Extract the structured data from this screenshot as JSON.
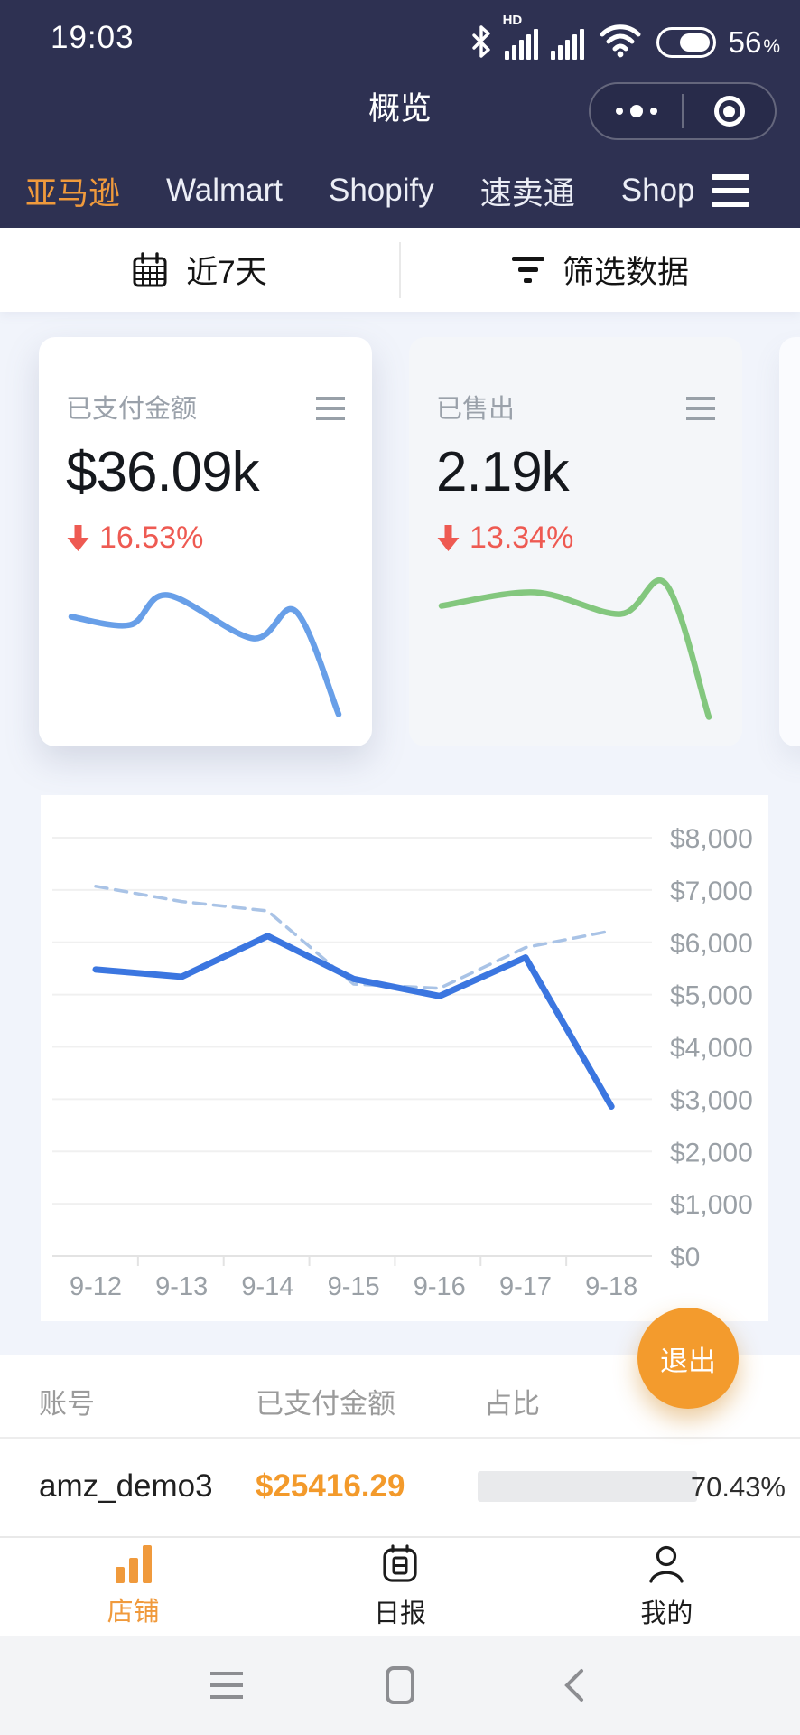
{
  "status_bar": {
    "time": "19:03",
    "hd_label": "HD",
    "battery_percent": "56",
    "percent_sign": "%"
  },
  "nav": {
    "title": "概览"
  },
  "platform_tabs": {
    "items": [
      "亚马逊",
      "Walmart",
      "Shopify",
      "速卖通",
      "Shope"
    ],
    "active_index": 0
  },
  "filter_bar": {
    "date_range": "近7天",
    "filter_label": "筛选数据"
  },
  "summary_cards": [
    {
      "title": "已支付金额",
      "value": "$36.09k",
      "change": "16.53%",
      "direction": "down",
      "spark_color": "#689fe8",
      "spark": [
        [
          0,
          0.25
        ],
        [
          0.22,
          0.31
        ],
        [
          0.36,
          0.09
        ],
        [
          0.68,
          0.41
        ],
        [
          0.84,
          0.21
        ],
        [
          1,
          0.97
        ]
      ]
    },
    {
      "title": "已售出",
      "value": "2.19k",
      "change": "13.34%",
      "direction": "down",
      "spark_color": "#83c77e",
      "spark": [
        [
          0,
          0.17
        ],
        [
          0.35,
          0.07
        ],
        [
          0.67,
          0.23
        ],
        [
          0.84,
          0.01
        ],
        [
          1,
          0.99
        ]
      ]
    }
  ],
  "chart_data": {
    "type": "line",
    "categories": [
      "9-12",
      "9-13",
      "9-14",
      "9-15",
      "9-16",
      "9-17",
      "9-18"
    ],
    "series": [
      {
        "name": "paid-amount-current",
        "style": "solid",
        "color": "#3b76e0",
        "width": 7,
        "values": [
          5480,
          5340,
          6120,
          5300,
          4970,
          5710,
          2860
        ]
      },
      {
        "name": "paid-amount-previous",
        "style": "dashed",
        "color": "#a9c3e6",
        "width": 3.5,
        "values": [
          7070,
          6780,
          6600,
          5200,
          5120,
          5900,
          6220
        ]
      }
    ],
    "ylim": [
      0,
      8000
    ],
    "y_ticks": [
      "$8,000",
      "$7,000",
      "$6,000",
      "$5,000",
      "$4,000",
      "$3,000",
      "$2,000",
      "$1,000",
      "$0"
    ],
    "ylabel_side": "right",
    "grid": true,
    "legend": "none"
  },
  "exit_button": {
    "label": "退出"
  },
  "account_table": {
    "headers": [
      "账号",
      "已支付金额",
      "占比"
    ],
    "rows": [
      {
        "account": "amz_demo3",
        "amount": "$25416.29",
        "percent": 70.43,
        "percent_label": "70.43%"
      }
    ]
  },
  "tab_bar": {
    "items": [
      {
        "label": "店铺",
        "active": true
      },
      {
        "label": "日报",
        "active": false
      },
      {
        "label": "我的",
        "active": false
      }
    ]
  },
  "colors": {
    "header_bg": "#2e3152",
    "accent_orange": "#f09a3c",
    "negative_red": "#ee5a52",
    "progress_blue": "#1890ff",
    "line_blue": "#3b76e0",
    "line_dashed": "#a9c3e6",
    "page_bg": "#f1f4fb"
  }
}
